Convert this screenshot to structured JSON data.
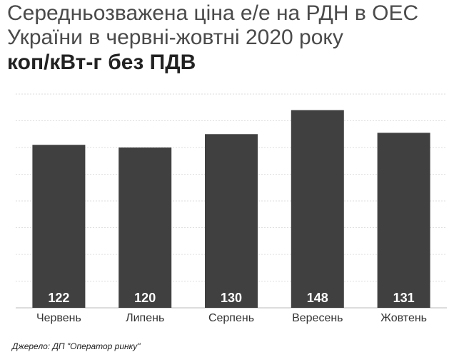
{
  "header": {
    "title_line1": "Середньозважена ціна е/е на РДН в ОЕС",
    "title_line2": "України в червні-жовтні 2020 року",
    "title_line3": "коп/кВт-г без ПДВ"
  },
  "chart_data": {
    "type": "bar",
    "title": "Середньозважена ціна е/е на РДН в ОЕС України в червні-жовтні 2020 року",
    "subtitle": "коп/кВт-г без ПДВ",
    "categories": [
      "Червень",
      "Липень",
      "Серпень",
      "Вересень",
      "Жовтень"
    ],
    "values": [
      122,
      120,
      130,
      148,
      131
    ],
    "ylim": [
      0,
      160
    ],
    "grid": true,
    "bar_color": "#404040",
    "label_color": "#ffffff",
    "grid_color": "#dddddd"
  },
  "footer": {
    "source": "Джерело: ДП \"Оператор ринку\""
  }
}
